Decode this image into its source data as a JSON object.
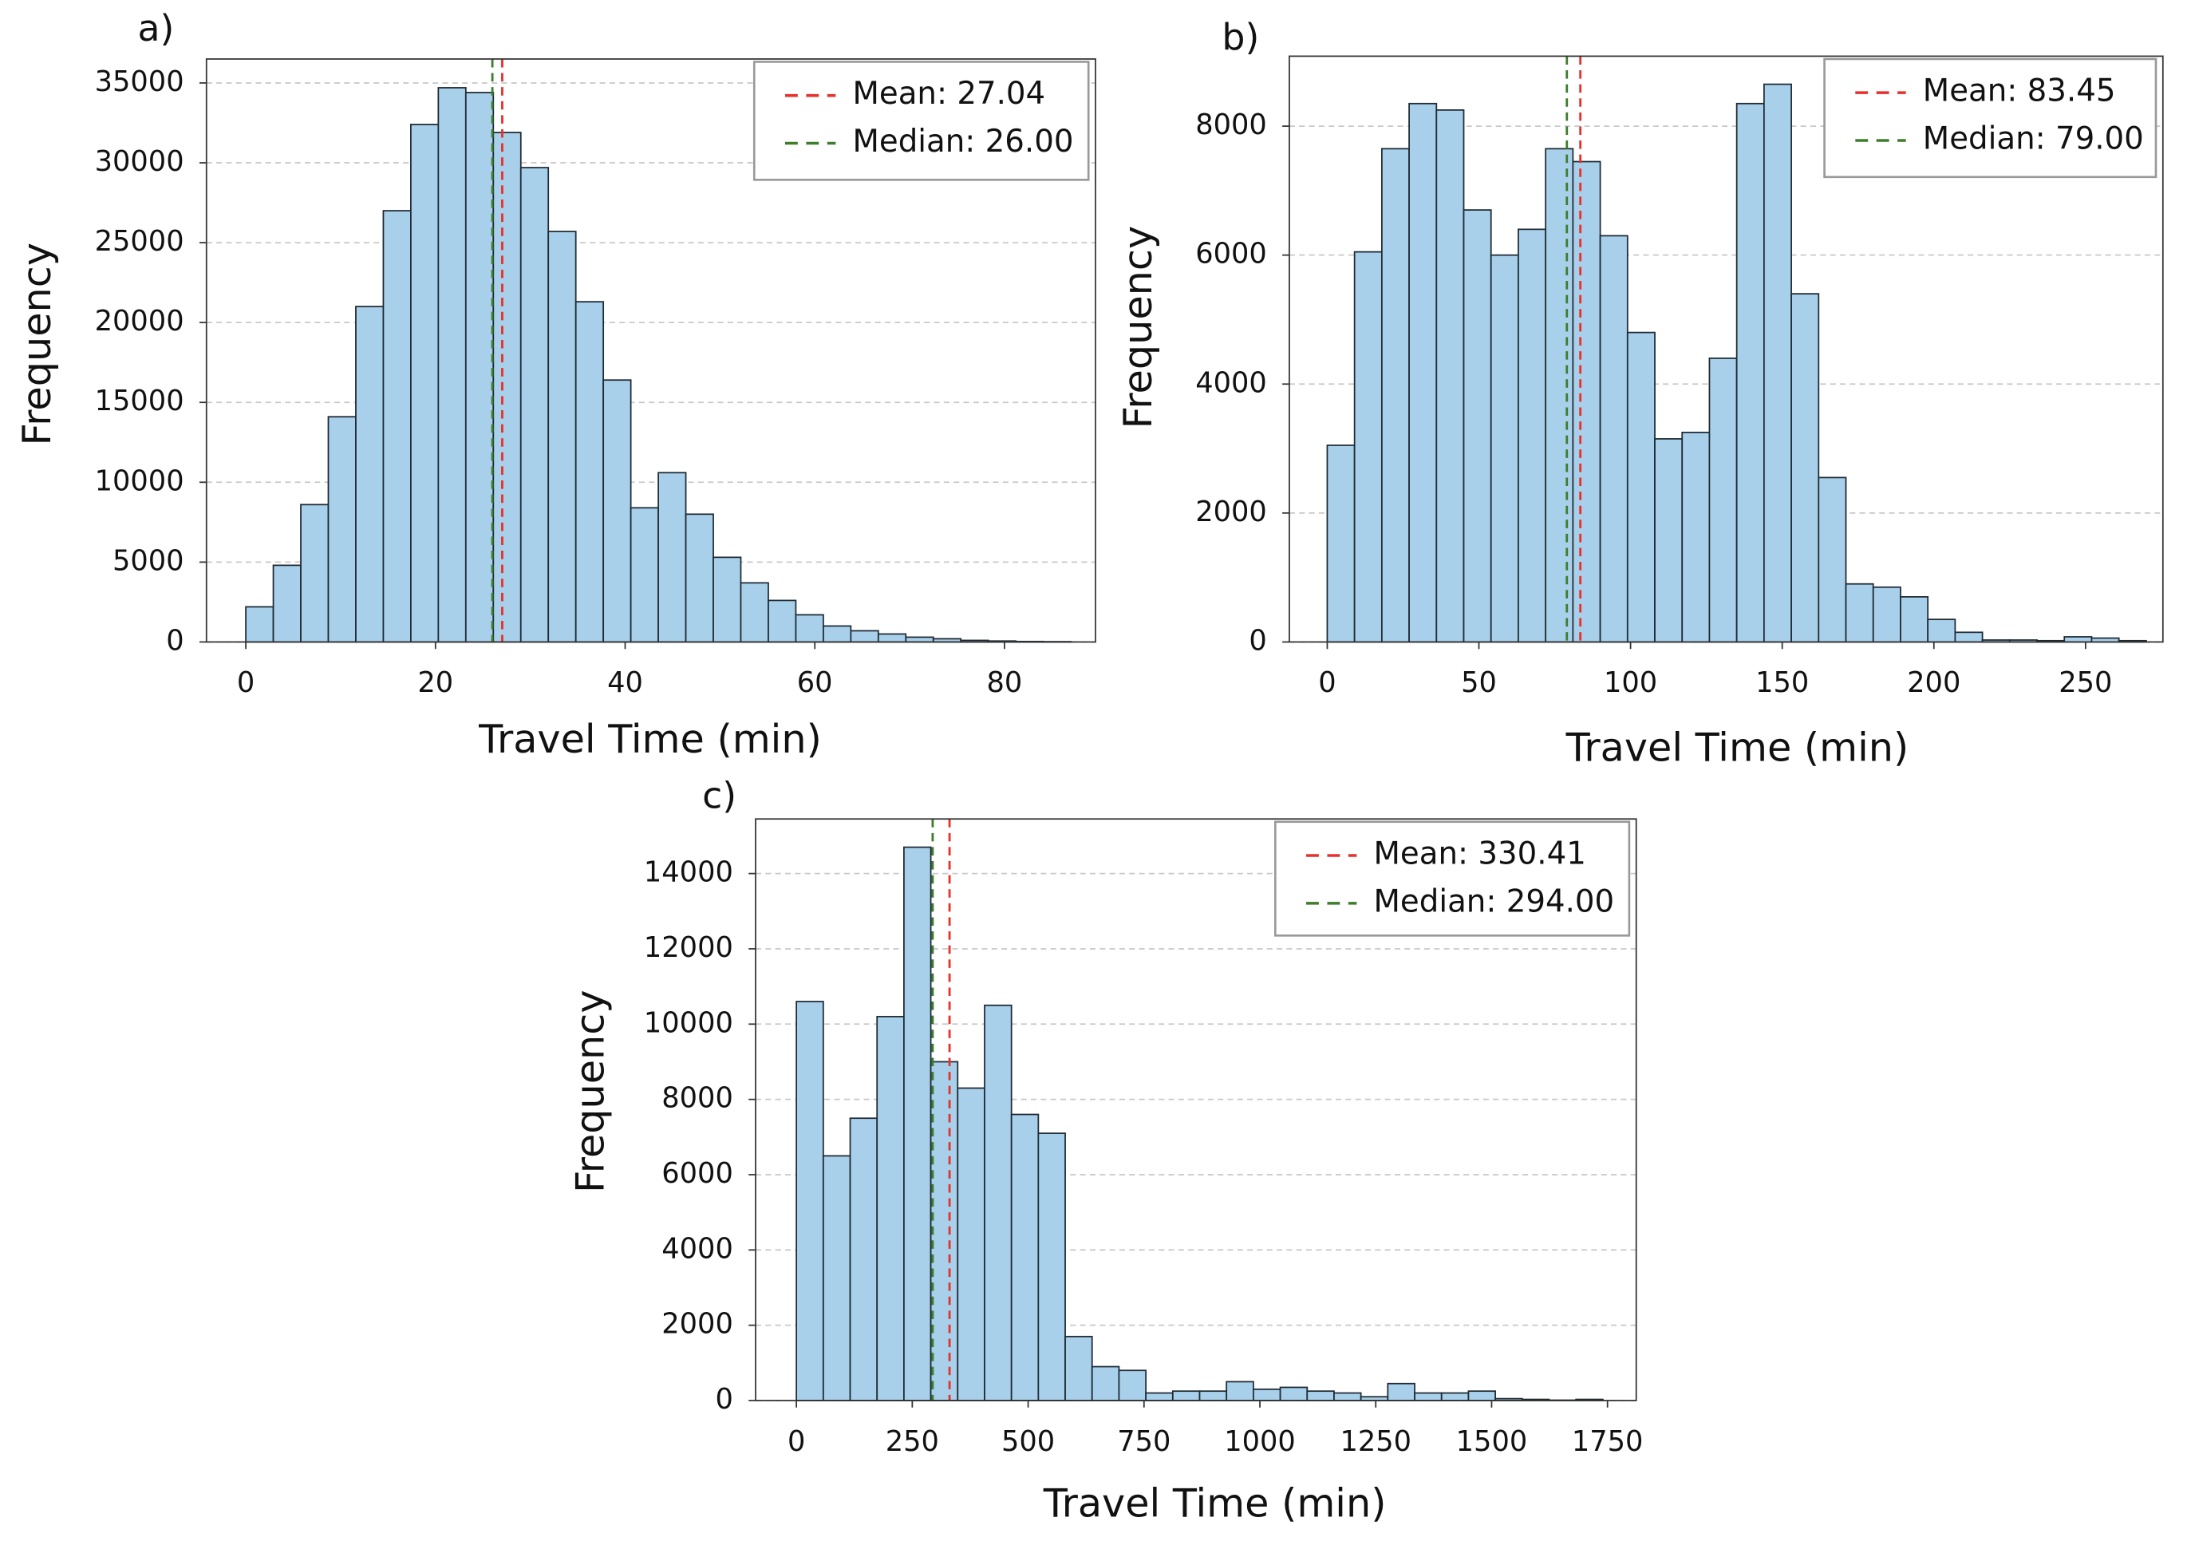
{
  "chart_data": [
    {
      "type": "histogram",
      "panel_label": "a)",
      "xlabel": "Travel Time (min)",
      "ylabel": "Frequency",
      "bins": [
        0,
        2.9,
        5.8,
        8.7,
        11.6,
        14.5,
        17.4,
        20.3,
        23.2,
        26.1,
        29,
        31.9,
        34.8,
        37.7,
        40.6,
        43.5,
        46.4,
        49.3,
        52.2,
        55.1,
        58,
        60.9,
        63.8,
        66.7,
        69.6,
        72.5,
        75.4,
        78.3,
        81.2,
        84.1,
        87
      ],
      "counts": [
        2200,
        4800,
        8600,
        14100,
        21000,
        27000,
        32400,
        34700,
        34400,
        31900,
        29700,
        25700,
        21300,
        16400,
        8400,
        10600,
        8000,
        5300,
        3700,
        2600,
        1700,
        1000,
        700,
        500,
        300,
        200,
        100,
        60,
        30,
        20
      ],
      "color": "#a8d0ea",
      "edgecolor": "#1f2a33",
      "xlim": [
        -4.15,
        89.6
      ],
      "ylim": [
        0,
        36500
      ],
      "xticks": [
        0,
        20,
        40,
        60,
        80
      ],
      "yticks": [
        0,
        5000,
        10000,
        15000,
        20000,
        25000,
        30000,
        35000
      ],
      "grid": true,
      "legend": "upper right",
      "lines": [
        {
          "name": "Mean: 27.04",
          "x": 27.04,
          "color": "#e8312b"
        },
        {
          "name": "Median: 26.00",
          "x": 26.0,
          "color": "#3d7d2c"
        }
      ]
    },
    {
      "type": "histogram",
      "panel_label": "b)",
      "xlabel": "Travel Time (min)",
      "ylabel": "Frequency",
      "bins": [
        0,
        9,
        18,
        27,
        36,
        45,
        54,
        63,
        72,
        81,
        90,
        99,
        108,
        117,
        126,
        135,
        144,
        153,
        162,
        171,
        180,
        189,
        198,
        207,
        216,
        225,
        234,
        243,
        252,
        261,
        270
      ],
      "counts": [
        3050,
        6050,
        7650,
        8350,
        8250,
        6700,
        6000,
        6400,
        7650,
        7450,
        6300,
        4800,
        3150,
        3250,
        4400,
        8350,
        8650,
        5400,
        2550,
        900,
        850,
        700,
        350,
        150,
        30,
        30,
        20,
        80,
        60,
        20
      ],
      "color": "#a8d0ea",
      "edgecolor": "#1f2a33",
      "xlim": [
        -12.5,
        275.5
      ],
      "ylim": [
        0,
        9085
      ],
      "xticks": [
        0,
        50,
        100,
        150,
        200,
        250
      ],
      "yticks": [
        0,
        2000,
        4000,
        6000,
        8000
      ],
      "grid": true,
      "legend": "upper right",
      "lines": [
        {
          "name": "Mean: 83.45",
          "x": 83.45,
          "color": "#e8312b"
        },
        {
          "name": "Median: 79.00",
          "x": 79.0,
          "color": "#3d7d2c"
        }
      ]
    },
    {
      "type": "histogram",
      "panel_label": "c)",
      "xlabel": "Travel Time (min)",
      "ylabel": "Frequency",
      "bins": [
        0,
        58,
        116,
        174,
        232,
        290,
        348,
        406,
        464,
        522,
        580,
        638,
        696,
        754,
        812,
        870,
        928,
        986,
        1044,
        1102,
        1160,
        1218,
        1276,
        1334,
        1392,
        1450,
        1508,
        1566,
        1624,
        1682,
        1740
      ],
      "counts": [
        10600,
        6500,
        7500,
        10200,
        14700,
        9000,
        8300,
        10500,
        7600,
        7100,
        1700,
        900,
        800,
        200,
        250,
        250,
        500,
        300,
        350,
        250,
        200,
        100,
        450,
        200,
        200,
        250,
        50,
        30,
        10,
        30
      ],
      "color": "#a8d0ea",
      "edgecolor": "#1f2a33",
      "xlim": [
        -88,
        1812
      ],
      "ylim": [
        0,
        15450
      ],
      "xticks": [
        0,
        250,
        500,
        750,
        1000,
        1250,
        1500,
        1750
      ],
      "yticks": [
        0,
        2000,
        4000,
        6000,
        8000,
        10000,
        12000,
        14000
      ],
      "grid": true,
      "legend": "upper right",
      "lines": [
        {
          "name": "Mean: 330.41",
          "x": 330.41,
          "color": "#e8312b"
        },
        {
          "name": "Median: 294.00",
          "x": 294.0,
          "color": "#3d7d2c"
        }
      ]
    }
  ]
}
